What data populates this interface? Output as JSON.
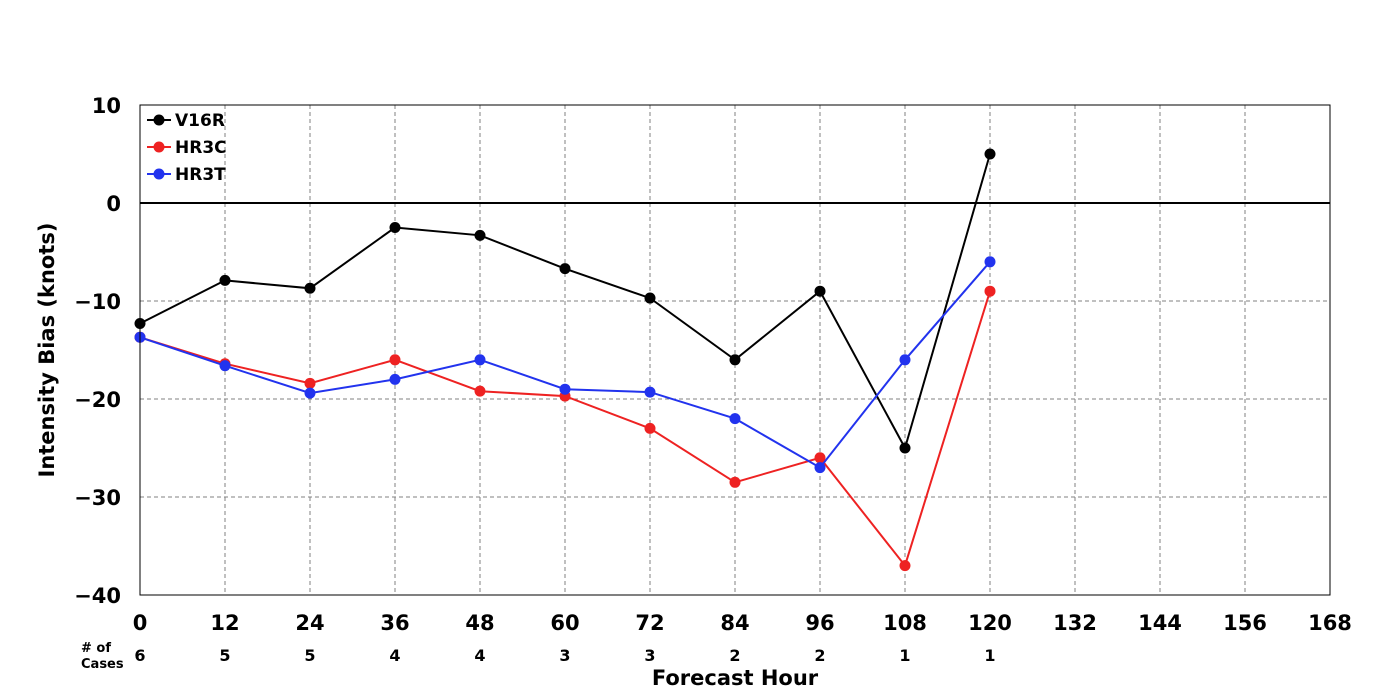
{
  "chart_data": {
    "type": "line",
    "xlabel": "Forecast Hour",
    "ylabel": "Intensity Bias (knots)",
    "xlim": [
      0,
      168
    ],
    "ylim": [
      -40,
      10
    ],
    "x_ticks": [
      0,
      12,
      24,
      36,
      48,
      60,
      72,
      84,
      96,
      108,
      120,
      132,
      144,
      156,
      168
    ],
    "y_ticks": [
      10,
      0,
      -10,
      -20,
      -30,
      -40
    ],
    "y_tick_labels": [
      "10",
      "0",
      "−10",
      "−20",
      "−30",
      "−40"
    ],
    "grid": true,
    "legend_position": "top-left",
    "zero_line": true,
    "cases_header": [
      "# of",
      "Cases"
    ],
    "cases": [
      {
        "x": 0,
        "n": "6"
      },
      {
        "x": 12,
        "n": "5"
      },
      {
        "x": 24,
        "n": "5"
      },
      {
        "x": 36,
        "n": "4"
      },
      {
        "x": 48,
        "n": "4"
      },
      {
        "x": 60,
        "n": "3"
      },
      {
        "x": 72,
        "n": "3"
      },
      {
        "x": 84,
        "n": "2"
      },
      {
        "x": 96,
        "n": "2"
      },
      {
        "x": 108,
        "n": "1"
      },
      {
        "x": 120,
        "n": "1"
      }
    ],
    "x": [
      0,
      12,
      24,
      36,
      48,
      60,
      72,
      84,
      96,
      108,
      120
    ],
    "series": [
      {
        "name": "V16R",
        "color": "#000000",
        "values": [
          -12.3,
          -7.9,
          -8.7,
          -2.5,
          -3.3,
          -6.7,
          -9.7,
          -16.0,
          -9.0,
          -25.0,
          5.0
        ]
      },
      {
        "name": "HR3C",
        "color": "#ee2222",
        "values": [
          -13.7,
          -16.4,
          -18.4,
          -16.0,
          -19.2,
          -19.7,
          -23.0,
          -28.5,
          -26.0,
          -37.0,
          -9.0
        ]
      },
      {
        "name": "HR3T",
        "color": "#2233ee",
        "values": [
          -13.7,
          -16.6,
          -19.4,
          -18.0,
          -16.0,
          -19.0,
          -19.3,
          -22.0,
          -27.0,
          -16.0,
          -6.0
        ]
      }
    ]
  }
}
